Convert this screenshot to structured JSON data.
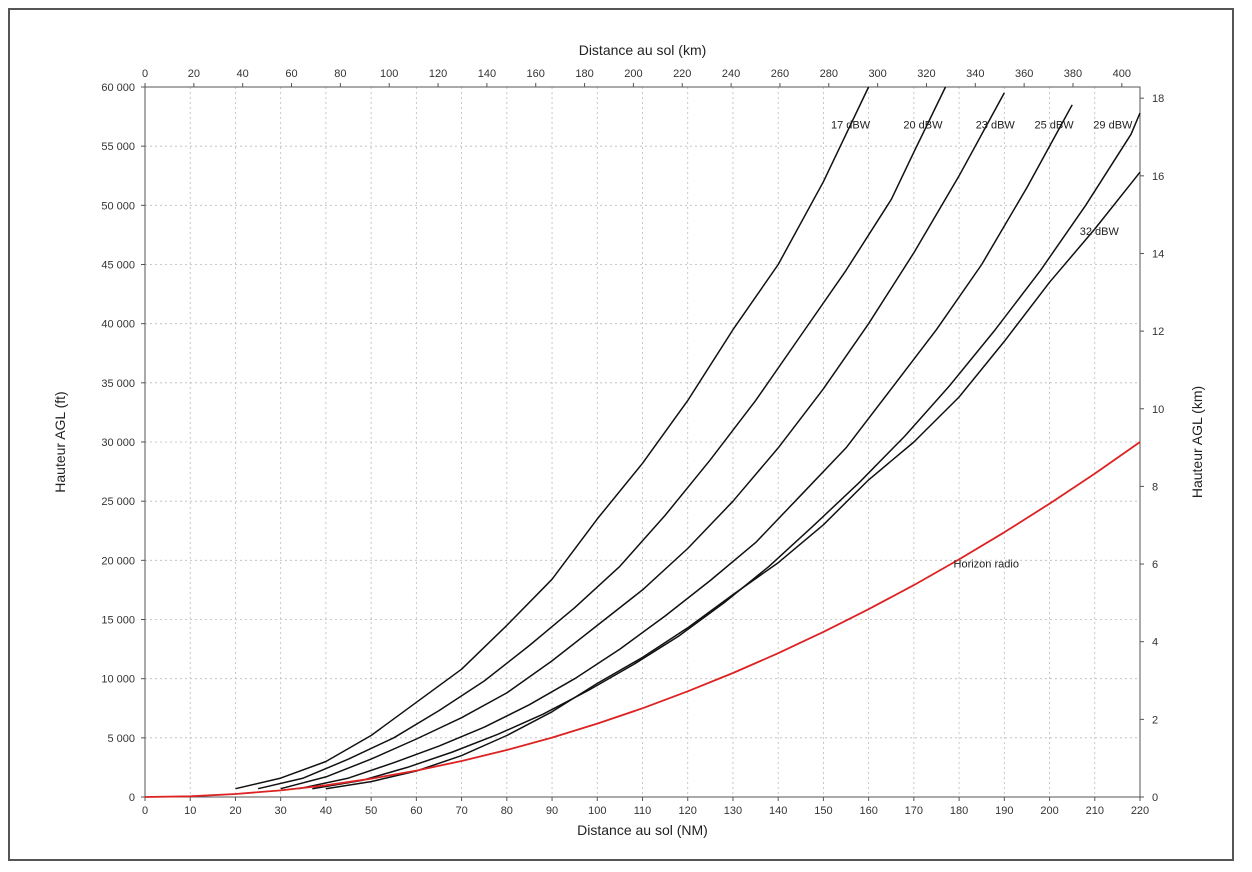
{
  "chart_data": {
    "type": "line",
    "title": "",
    "xlabel": "Distance au sol (NM)",
    "x2label": "Distance au sol (km)",
    "ylabel": "Hauteur AGL (ft)",
    "y2label": "Hauteur AGL (km)",
    "xlim": [
      0,
      220
    ],
    "ylim": [
      0,
      60000
    ],
    "x2lim": [
      0,
      407.44
    ],
    "y2lim": [
      0,
      18.288
    ],
    "xticks": [
      "0",
      "10",
      "20",
      "30",
      "40",
      "50",
      "60",
      "70",
      "80",
      "90",
      "100",
      "110",
      "120",
      "130",
      "140",
      "150",
      "160",
      "170",
      "180",
      "190",
      "200",
      "210",
      "220"
    ],
    "yticks": [
      "0",
      "5 000",
      "10 000",
      "15 000",
      "20 000",
      "25 000",
      "30 000",
      "35 000",
      "40 000",
      "45 000",
      "50 000",
      "55 000",
      "60 000"
    ],
    "x2ticks": [
      "0",
      "20",
      "40",
      "60",
      "80",
      "100",
      "120",
      "140",
      "160",
      "180",
      "200",
      "220",
      "240",
      "260",
      "280",
      "300",
      "320",
      "340",
      "360",
      "380",
      "400"
    ],
    "y2ticks": [
      "0",
      "2",
      "4",
      "6",
      "8",
      "10",
      "12",
      "14",
      "16",
      "18"
    ],
    "grid": true,
    "series": [
      {
        "name": "17 dBW",
        "color": "#111111",
        "label_pos": [
          156,
          56500
        ],
        "x": [
          20,
          30,
          40,
          50,
          60,
          70,
          80,
          90,
          100,
          110,
          120,
          130,
          140,
          150,
          155,
          160
        ],
        "y": [
          700,
          1600,
          3000,
          5200,
          8000,
          10800,
          14500,
          18400,
          23500,
          28200,
          33500,
          39500,
          45000,
          52000,
          56000,
          60000
        ]
      },
      {
        "name": "20 dBW",
        "color": "#111111",
        "label_pos": [
          172,
          56500
        ],
        "x": [
          25,
          35,
          45,
          55,
          65,
          75,
          85,
          95,
          105,
          115,
          125,
          135,
          145,
          155,
          165,
          170,
          177
        ],
        "y": [
          700,
          1600,
          3200,
          5000,
          7300,
          9800,
          12800,
          16000,
          19500,
          23800,
          28500,
          33500,
          39000,
          44500,
          50500,
          54500,
          60000
        ]
      },
      {
        "name": "23 dBW",
        "color": "#111111",
        "label_pos": [
          188,
          56500
        ],
        "x": [
          30,
          40,
          50,
          60,
          70,
          80,
          90,
          100,
          110,
          120,
          130,
          140,
          150,
          160,
          170,
          180,
          190
        ],
        "y": [
          700,
          1700,
          3200,
          4900,
          6700,
          8800,
          11500,
          14500,
          17500,
          21000,
          25000,
          29500,
          34500,
          40000,
          46000,
          52500,
          59500
        ]
      },
      {
        "name": "25 dBW",
        "color": "#111111",
        "label_pos": [
          201,
          56500
        ],
        "x": [
          34,
          45,
          55,
          65,
          75,
          85,
          95,
          105,
          115,
          125,
          135,
          145,
          155,
          165,
          175,
          185,
          195,
          205
        ],
        "y": [
          700,
          1600,
          2900,
          4300,
          5900,
          7800,
          10000,
          12500,
          15300,
          18300,
          21500,
          25500,
          29500,
          34500,
          39500,
          45000,
          51500,
          58500
        ]
      },
      {
        "name": "29 dBW",
        "color": "#111111",
        "label_pos": [
          214,
          56500
        ],
        "x": [
          37,
          48,
          58,
          68,
          78,
          88,
          98,
          108,
          118,
          128,
          138,
          148,
          158,
          168,
          178,
          188,
          198,
          208,
          218,
          220
        ],
        "y": [
          700,
          1400,
          2500,
          3800,
          5300,
          7000,
          9000,
          11200,
          13600,
          16400,
          19500,
          23000,
          26600,
          30500,
          34800,
          39500,
          44500,
          50000,
          56000,
          57800
        ]
      },
      {
        "name": "32 dBW",
        "color": "#111111",
        "label_pos": [
          211,
          47500
        ],
        "x": [
          40,
          50,
          60,
          70,
          80,
          90,
          100,
          110,
          120,
          130,
          140,
          150,
          160,
          170,
          180,
          190,
          200,
          210,
          220
        ],
        "y": [
          700,
          1300,
          2200,
          3500,
          5200,
          7200,
          9600,
          11800,
          14300,
          17100,
          19800,
          23000,
          26800,
          30000,
          33800,
          38500,
          43500,
          48000,
          52800
        ]
      },
      {
        "name": "Horizon radio",
        "color": "#dd2222",
        "label_pos": [
          186,
          19400
        ],
        "x": [
          0,
          10,
          20,
          30,
          40,
          50,
          60,
          70,
          80,
          90,
          100,
          110,
          120,
          130,
          140,
          150,
          160,
          170,
          180,
          190,
          200,
          210,
          220
        ],
        "y": [
          0,
          60,
          250,
          560,
          990,
          1550,
          2230,
          3040,
          3970,
          5020,
          6200,
          7500,
          8930,
          10480,
          12150,
          13950,
          15870,
          17910,
          20080,
          22370,
          24790,
          27330,
          30000
        ]
      }
    ]
  }
}
